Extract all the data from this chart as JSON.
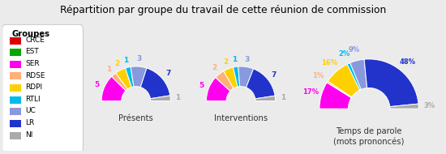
{
  "title": "Répartition par groupe du travail de cette réunion de commission",
  "groups": [
    "CRCE",
    "EST",
    "SER",
    "RDSE",
    "RDPI",
    "RTLI",
    "UC",
    "LR",
    "NI"
  ],
  "colors": [
    "#dd0000",
    "#00aa00",
    "#ff00ee",
    "#ffb07a",
    "#ffd000",
    "#00bbee",
    "#8899dd",
    "#2233cc",
    "#aaaaaa"
  ],
  "presents": [
    0,
    0,
    5,
    1,
    2,
    1,
    3,
    7,
    1
  ],
  "interventions": [
    0,
    0,
    5,
    2,
    2,
    1,
    3,
    7,
    1
  ],
  "temps_pct": [
    0,
    0,
    17,
    1,
    16,
    2,
    9,
    48,
    3
  ],
  "background_color": "#ebebeb",
  "subtitle_presents": "Présents",
  "subtitle_interventions": "Interventions",
  "subtitle_temps": "Temps de parole\n(mots prononcés)"
}
